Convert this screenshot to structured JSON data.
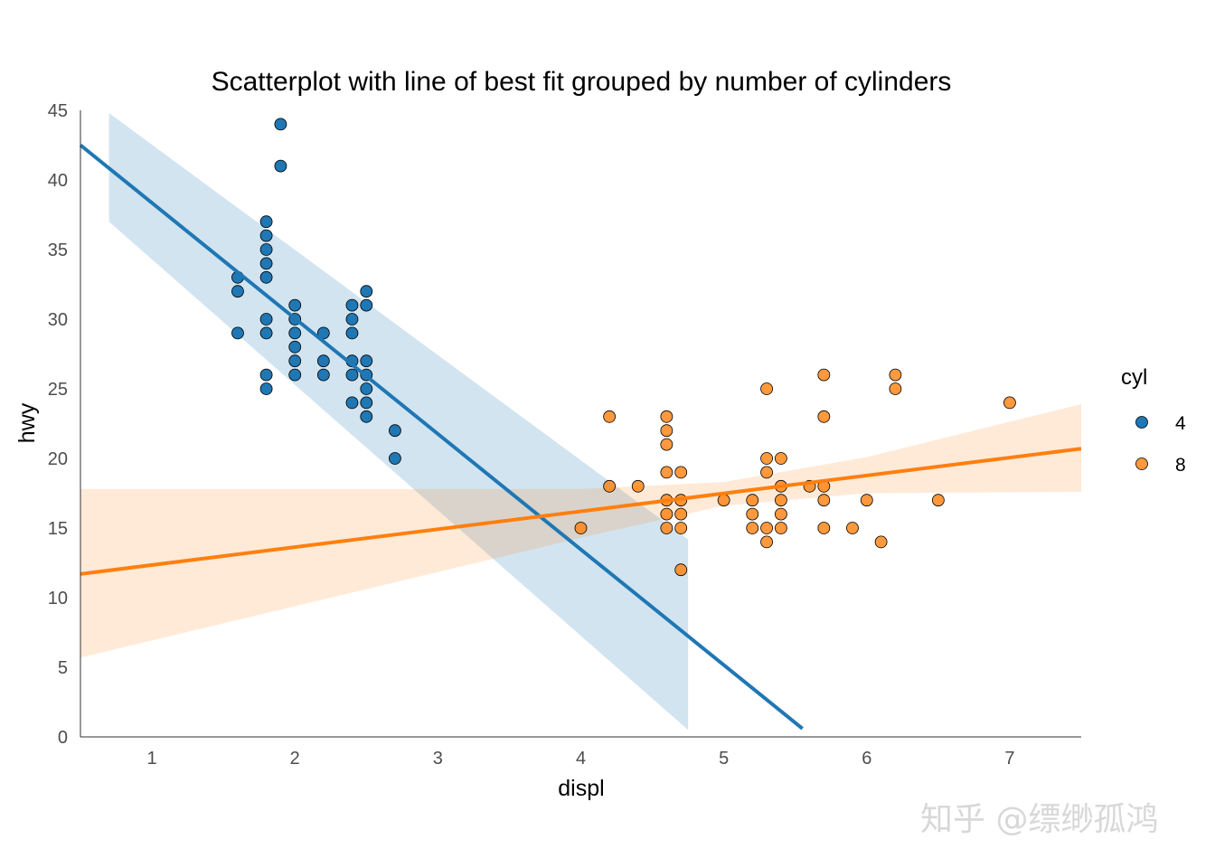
{
  "chart_data": {
    "type": "scatter",
    "title": "Scatterplot with line of best fit grouped by number of cylinders",
    "xlabel": "displ",
    "ylabel": "hwy",
    "xlim": [
      0.5,
      7.5
    ],
    "ylim": [
      0,
      45
    ],
    "xticks": [
      1,
      2,
      3,
      4,
      5,
      6,
      7
    ],
    "yticks": [
      0,
      5,
      10,
      15,
      20,
      25,
      30,
      35,
      40,
      45
    ],
    "grid": false,
    "legend": {
      "title": "cyl",
      "placement": "right"
    },
    "series": [
      {
        "name": "4",
        "color": "#1f77b4",
        "points": [
          [
            1.6,
            33
          ],
          [
            1.6,
            32
          ],
          [
            1.6,
            29
          ],
          [
            1.8,
            37
          ],
          [
            1.8,
            36
          ],
          [
            1.8,
            35
          ],
          [
            1.8,
            34
          ],
          [
            1.8,
            33
          ],
          [
            1.8,
            30
          ],
          [
            1.8,
            29
          ],
          [
            1.8,
            26
          ],
          [
            1.8,
            25
          ],
          [
            1.9,
            44
          ],
          [
            1.9,
            41
          ],
          [
            2.0,
            31
          ],
          [
            2.0,
            30
          ],
          [
            2.0,
            29
          ],
          [
            2.0,
            28
          ],
          [
            2.0,
            27
          ],
          [
            2.0,
            26
          ],
          [
            2.2,
            29
          ],
          [
            2.2,
            27
          ],
          [
            2.2,
            26
          ],
          [
            2.4,
            31
          ],
          [
            2.4,
            30
          ],
          [
            2.4,
            29
          ],
          [
            2.4,
            27
          ],
          [
            2.4,
            26
          ],
          [
            2.4,
            24
          ],
          [
            2.5,
            32
          ],
          [
            2.5,
            31
          ],
          [
            2.5,
            27
          ],
          [
            2.5,
            26
          ],
          [
            2.5,
            25
          ],
          [
            2.5,
            24
          ],
          [
            2.5,
            23
          ],
          [
            2.7,
            22
          ],
          [
            2.7,
            20
          ]
        ],
        "fit": {
          "x": [
            0.5,
            5.55
          ],
          "y": [
            42.5,
            0.6
          ]
        },
        "band": {
          "x": [
            0.7,
            4.75
          ],
          "lower": [
            37.0,
            0.5
          ],
          "upper": [
            44.8,
            14.2
          ]
        }
      },
      {
        "name": "8",
        "color": "#ff7f0e",
        "points": [
          [
            4.0,
            15
          ],
          [
            4.2,
            23
          ],
          [
            4.2,
            18
          ],
          [
            4.4,
            18
          ],
          [
            4.6,
            23
          ],
          [
            4.6,
            22
          ],
          [
            4.6,
            21
          ],
          [
            4.6,
            19
          ],
          [
            4.6,
            17
          ],
          [
            4.6,
            16
          ],
          [
            4.6,
            15
          ],
          [
            4.7,
            19
          ],
          [
            4.7,
            17
          ],
          [
            4.7,
            16
          ],
          [
            4.7,
            15
          ],
          [
            4.7,
            12
          ],
          [
            5.0,
            17
          ],
          [
            5.2,
            17
          ],
          [
            5.2,
            16
          ],
          [
            5.2,
            15
          ],
          [
            5.3,
            25
          ],
          [
            5.3,
            20
          ],
          [
            5.3,
            19
          ],
          [
            5.3,
            15
          ],
          [
            5.3,
            14
          ],
          [
            5.4,
            20
          ],
          [
            5.4,
            18
          ],
          [
            5.4,
            17
          ],
          [
            5.4,
            16
          ],
          [
            5.4,
            15
          ],
          [
            5.6,
            18
          ],
          [
            5.7,
            26
          ],
          [
            5.7,
            23
          ],
          [
            5.7,
            18
          ],
          [
            5.7,
            17
          ],
          [
            5.7,
            15
          ],
          [
            5.9,
            15
          ],
          [
            6.0,
            17
          ],
          [
            6.1,
            14
          ],
          [
            6.2,
            26
          ],
          [
            6.2,
            25
          ],
          [
            6.5,
            17
          ],
          [
            7.0,
            24
          ]
        ],
        "fit": {
          "x": [
            0.5,
            7.5
          ],
          "y": [
            11.7,
            20.7
          ]
        },
        "band": {
          "x": [
            0.5,
            4.0,
            5.0,
            6.0,
            7.5
          ],
          "lower": [
            5.7,
            14.3,
            16.6,
            17.5,
            17.6
          ],
          "upper": [
            17.8,
            17.8,
            18.3,
            20.1,
            23.9
          ]
        }
      }
    ]
  },
  "watermark": "知乎 @缥缈孤鸿"
}
